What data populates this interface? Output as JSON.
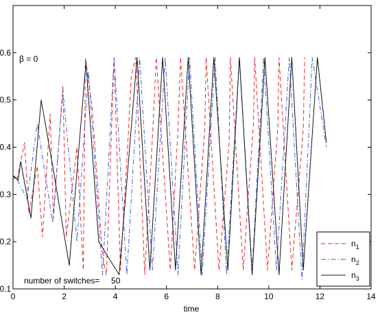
{
  "chart_data": {
    "type": "line",
    "title": "",
    "xlabel": "time",
    "ylabel": "",
    "xlim": [
      0,
      14
    ],
    "ylim": [
      0.1,
      0.7
    ],
    "xticks": [
      "0",
      "2",
      "4",
      "6",
      "8",
      "10",
      "12",
      "14"
    ],
    "yticks": [
      "0.1",
      "0.2",
      "0.3",
      "0.4",
      "0.5",
      "0.6"
    ],
    "grid": false,
    "legend_position": "bottom-right",
    "annotations": {
      "beta": "β =  0",
      "switches": "number of switches=     50"
    },
    "series": [
      {
        "name": "n1",
        "name_base": "n",
        "name_sub": "1",
        "color": "#e8242c",
        "dash": "dashed",
        "x": [
          0,
          0.15,
          0.45,
          0.62,
          0.95,
          1.15,
          1.45,
          1.58,
          1.95,
          2.08,
          2.5,
          2.75,
          2.83,
          3.1,
          3.5,
          3.65,
          3.95,
          4.2,
          4.5,
          4.62,
          4.8,
          5.15,
          5.45,
          5.6,
          6.15,
          6.45,
          6.55,
          7.1,
          7.5,
          7.55,
          8.05,
          8.45,
          8.5,
          9.0,
          9.4,
          9.45,
          9.95,
          10.35,
          10.4,
          10.9,
          11.35,
          11.4
        ],
        "y": [
          0.34,
          0.33,
          0.41,
          0.26,
          0.36,
          0.21,
          0.47,
          0.25,
          0.53,
          0.21,
          0.4,
          0.14,
          0.59,
          0.48,
          0.17,
          0.13,
          0.59,
          0.14,
          0.42,
          0.55,
          0.59,
          0.13,
          0.42,
          0.59,
          0.14,
          0.44,
          0.59,
          0.14,
          0.44,
          0.59,
          0.14,
          0.41,
          0.59,
          0.14,
          0.45,
          0.59,
          0.14,
          0.44,
          0.59,
          0.14,
          0.44,
          0.59
        ]
      },
      {
        "name": "n2",
        "name_base": "n",
        "name_sub": "2",
        "color": "#3a5fe0",
        "dash": "dashdot",
        "x": [
          0,
          0.08,
          0.55,
          0.95,
          1.55,
          1.95,
          2.5,
          2.95,
          3.5,
          3.95,
          4.45,
          4.95,
          5.45,
          5.95,
          6.45,
          6.9,
          7.4,
          7.9,
          8.35,
          8.85,
          9.35,
          9.8,
          10.3,
          10.8,
          11.3,
          11.7,
          12.25
        ],
        "y": [
          0.33,
          0.34,
          0.29,
          0.45,
          0.24,
          0.52,
          0.2,
          0.56,
          0.13,
          0.59,
          0.13,
          0.59,
          0.14,
          0.59,
          0.13,
          0.59,
          0.13,
          0.59,
          0.13,
          0.59,
          0.14,
          0.59,
          0.14,
          0.59,
          0.12,
          0.59,
          0.4
        ]
      },
      {
        "name": "n3",
        "name_base": "n",
        "name_sub": "3",
        "color": "#111111",
        "dash": "solid",
        "x": [
          0,
          0.2,
          0.3,
          0.7,
          1.1,
          1.55,
          2.2,
          2.85,
          3.35,
          4.15,
          4.85,
          5.35,
          5.85,
          6.35,
          6.85,
          7.35,
          7.85,
          8.4,
          8.85,
          9.35,
          9.85,
          10.4,
          10.9,
          11.35,
          11.9,
          12.25
        ],
        "y": [
          0.34,
          0.33,
          0.37,
          0.25,
          0.5,
          0.36,
          0.15,
          0.58,
          0.2,
          0.13,
          0.59,
          0.14,
          0.59,
          0.14,
          0.59,
          0.13,
          0.59,
          0.14,
          0.59,
          0.13,
          0.59,
          0.13,
          0.59,
          0.14,
          0.59,
          0.41
        ]
      }
    ]
  }
}
